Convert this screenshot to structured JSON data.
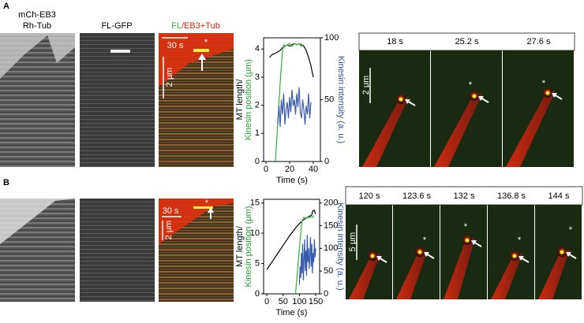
{
  "panel_a": {
    "label": "A",
    "kymographs": [
      {
        "title": [
          "mCh-EB3",
          "Rh-Tub"
        ]
      },
      {
        "title": [
          "FL-GFP"
        ]
      },
      {
        "title": [
          "FL",
          "/EB3+Tub"
        ],
        "time_scale": "30 s",
        "length_scale": "2 μm",
        "star": "*"
      }
    ],
    "frames": [
      {
        "time": "18 s",
        "scale": "2 μm"
      },
      {
        "time": "25.2 s",
        "star": "*"
      },
      {
        "time": "27.6 s",
        "star": "*"
      }
    ]
  },
  "panel_b": {
    "label": "B",
    "kymographs": [
      {},
      {},
      {
        "time_scale": "30 s",
        "length_scale": "2 μm",
        "star": "*"
      }
    ],
    "frames": [
      {
        "time": "120 s",
        "scale": "5 μm"
      },
      {
        "time": "123.6 s",
        "star": "*"
      },
      {
        "time": "132 s",
        "star": "*"
      },
      {
        "time": "136.8 s",
        "star": "*"
      },
      {
        "time": "144 s",
        "star": "*"
      }
    ]
  },
  "chart_data": [
    {
      "type": "line",
      "ylabel": [
        "MT length/",
        "Kinesin position (μm)"
      ],
      "ylabel_colors": [
        "#000000",
        "#2a9a3a"
      ],
      "y2label": "Kinesin intensity (a. u.)",
      "y2label_color": "#3050a0",
      "xlabel": "Time (s)",
      "xlim": [
        -2,
        46
      ],
      "xticks": [
        0,
        20,
        40
      ],
      "ylim": [
        0,
        4.4
      ],
      "yticks": [
        0,
        1,
        2,
        3,
        4
      ],
      "y2lim": [
        0,
        100
      ],
      "y2ticks": [
        0,
        50,
        100
      ],
      "series": [
        {
          "color": "#000000",
          "x": [
            3,
            5,
            8,
            10,
            12,
            14,
            16,
            18,
            20,
            22,
            24,
            26,
            28,
            30,
            32,
            34,
            36,
            38,
            40
          ],
          "values": [
            3.7,
            3.8,
            3.85,
            3.9,
            3.95,
            4.05,
            4.1,
            4.15,
            4.1,
            4.15,
            4.2,
            4.15,
            4.2,
            4.15,
            4.1,
            3.95,
            3.7,
            3.4,
            3.0
          ]
        },
        {
          "color": "#2fb040",
          "x": [
            8,
            9,
            10,
            11,
            12,
            13,
            14,
            15,
            16,
            18,
            20,
            22,
            24,
            26,
            28,
            30,
            32
          ],
          "values": [
            0,
            0.7,
            1.4,
            2.1,
            2.8,
            3.4,
            3.9,
            4.15,
            4.1,
            4.15,
            4.2,
            4.1,
            4.2,
            4.15,
            4.2,
            4.1,
            4.15
          ]
        },
        {
          "color": "#3a5cb0",
          "axis": "y2",
          "x": [
            10,
            11,
            12,
            13,
            14,
            15,
            16,
            17,
            18,
            19,
            20,
            21,
            22,
            23,
            24,
            25,
            26,
            27,
            28,
            29,
            30,
            31,
            32,
            33,
            34,
            35,
            36,
            37,
            38
          ],
          "values": [
            30,
            45,
            28,
            50,
            38,
            55,
            30,
            42,
            48,
            35,
            52,
            40,
            58,
            45,
            50,
            38,
            55,
            44,
            60,
            40,
            35,
            50,
            42,
            30,
            45,
            38,
            55,
            35,
            48
          ]
        }
      ]
    },
    {
      "type": "line",
      "ylabel": [
        "MT length/",
        "Kinesin position (μm)"
      ],
      "ylabel_colors": [
        "#000000",
        "#2a9a3a"
      ],
      "y2label": "Kinesin intensity (a. u.)",
      "y2label_color": "#3050a0",
      "xlabel": "Time (s)",
      "xlim": [
        -10,
        162
      ],
      "xticks": [
        0,
        50,
        100,
        150
      ],
      "ylim": [
        0,
        15.6
      ],
      "yticks": [
        0,
        5,
        10,
        15
      ],
      "y2lim": [
        0,
        208
      ],
      "y2ticks": [
        0,
        50,
        100,
        150,
        200
      ],
      "series": [
        {
          "color": "#000000",
          "x": [
            0,
            10,
            20,
            30,
            40,
            50,
            60,
            70,
            80,
            90,
            100,
            110,
            120,
            130,
            138,
            140,
            145,
            150
          ],
          "values": [
            4,
            4.8,
            5.6,
            6.4,
            7.2,
            8,
            8.8,
            9.6,
            10.3,
            11,
            11.6,
            12.1,
            12.5,
            12.8,
            13,
            13.6,
            13.8,
            13.2
          ]
        },
        {
          "color": "#2fb040",
          "x": [
            88,
            92,
            96,
            100,
            104,
            108,
            112,
            116,
            120,
            125,
            130,
            135,
            140,
            145
          ],
          "values": [
            0,
            2.5,
            5,
            7.5,
            10,
            12,
            12.5,
            12.6,
            12.4,
            12.7,
            12.5,
            12.8,
            12.6,
            12.9
          ]
        },
        {
          "color": "#3a5cb0",
          "axis": "y2",
          "x": [
            100,
            102,
            104,
            106,
            108,
            110,
            112,
            114,
            116,
            118,
            120,
            122,
            124,
            126,
            128,
            130,
            132,
            134,
            136,
            138,
            140,
            142,
            144,
            146,
            148,
            150
          ],
          "values": [
            20,
            60,
            35,
            90,
            45,
            110,
            30,
            75,
            120,
            50,
            95,
            40,
            130,
            70,
            100,
            55,
            85,
            125,
            60,
            110,
            45,
            90,
            70,
            120,
            80,
            100
          ]
        }
      ]
    }
  ]
}
